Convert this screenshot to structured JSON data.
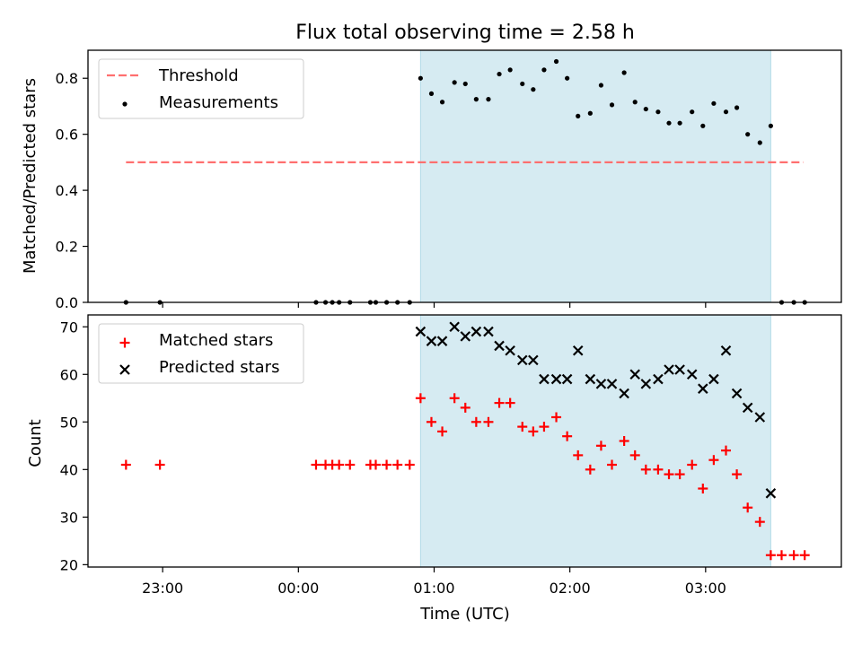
{
  "chart_data": [
    {
      "type": "scatter",
      "title": "Flux total observing time = 2.58 h",
      "ylabel": "Matched/Predicted stars",
      "xlabel": "",
      "ylim": [
        0,
        0.9
      ],
      "yticks": [
        0.0,
        0.2,
        0.4,
        0.6,
        0.8
      ],
      "ytick_labels": [
        "0.0",
        "0.2",
        "0.4",
        "0.6",
        "0.8"
      ],
      "x_unit": "hours since 00:00 UTC",
      "xlim": [
        -1.55,
        4.0
      ],
      "shaded_span": [
        0.9,
        3.48
      ],
      "threshold": {
        "name": "Threshold",
        "value": 0.5,
        "x_range": [
          -1.27,
          3.72
        ],
        "color": "#ff6f6f"
      },
      "legend": [
        "Threshold",
        "Measurements"
      ],
      "legend_position": "upper left",
      "series": [
        {
          "name": "Measurements",
          "color": "#000000",
          "x": [
            -1.27,
            -1.02,
            0.13,
            0.2,
            0.25,
            0.3,
            0.38,
            0.53,
            0.57,
            0.65,
            0.73,
            0.82,
            0.9,
            0.98,
            1.06,
            1.15,
            1.23,
            1.31,
            1.4,
            1.48,
            1.56,
            1.65,
            1.73,
            1.81,
            1.9,
            1.98,
            2.06,
            2.15,
            2.23,
            2.31,
            2.4,
            2.48,
            2.56,
            2.65,
            2.73,
            2.81,
            2.9,
            2.98,
            3.06,
            3.15,
            3.23,
            3.31,
            3.4,
            3.48,
            3.56,
            3.65,
            3.73
          ],
          "y": [
            0.0,
            0.0,
            0.0,
            0.0,
            0.0,
            0.0,
            0.0,
            0.0,
            0.0,
            0.0,
            0.0,
            0.0,
            0.8,
            0.745,
            0.715,
            0.785,
            0.78,
            0.725,
            0.725,
            0.815,
            0.83,
            0.78,
            0.76,
            0.83,
            0.86,
            0.8,
            0.665,
            0.675,
            0.775,
            0.705,
            0.82,
            0.715,
            0.69,
            0.68,
            0.64,
            0.64,
            0.68,
            0.63,
            0.71,
            0.68,
            0.695,
            0.6,
            0.57,
            0.63,
            0.0,
            0.0,
            0.0
          ]
        }
      ]
    },
    {
      "type": "scatter",
      "xlabel": "Time (UTC)",
      "ylabel": "Count",
      "ylim": [
        19.5,
        72.5
      ],
      "yticks": [
        20,
        30,
        40,
        50,
        60,
        70
      ],
      "ytick_labels": [
        "20",
        "30",
        "40",
        "50",
        "60",
        "70"
      ],
      "x_unit": "hours since 00:00 UTC",
      "xlim": [
        -1.55,
        4.0
      ],
      "xticks": [
        -1,
        0,
        1,
        2,
        3
      ],
      "xtick_labels": [
        "23:00",
        "00:00",
        "01:00",
        "02:00",
        "03:00"
      ],
      "shaded_span": [
        0.9,
        3.48
      ],
      "legend": [
        "Matched stars",
        "Predicted stars"
      ],
      "legend_position": "upper left",
      "series": [
        {
          "name": "Matched stars",
          "marker": "+",
          "color": "#ff0000",
          "x": [
            -1.27,
            -1.02,
            0.13,
            0.2,
            0.25,
            0.3,
            0.38,
            0.53,
            0.57,
            0.65,
            0.73,
            0.82,
            0.9,
            0.98,
            1.06,
            1.15,
            1.23,
            1.31,
            1.4,
            1.48,
            1.56,
            1.65,
            1.73,
            1.81,
            1.9,
            1.98,
            2.06,
            2.15,
            2.23,
            2.31,
            2.4,
            2.48,
            2.56,
            2.65,
            2.73,
            2.81,
            2.9,
            2.98,
            3.06,
            3.15,
            3.23,
            3.31,
            3.4,
            3.48,
            3.56,
            3.65,
            3.73
          ],
          "y": [
            41,
            41,
            41,
            41,
            41,
            41,
            41,
            41,
            41,
            41,
            41,
            41,
            55,
            50,
            48,
            55,
            53,
            50,
            50,
            54,
            54,
            49,
            48,
            49,
            51,
            47,
            43,
            40,
            45,
            41,
            46,
            43,
            40,
            40,
            39,
            39,
            41,
            36,
            42,
            44,
            39,
            32,
            29,
            22,
            22,
            22,
            22
          ]
        },
        {
          "name": "Predicted stars",
          "marker": "x",
          "color": "#000000",
          "x": [
            0.9,
            0.98,
            1.06,
            1.15,
            1.23,
            1.31,
            1.4,
            1.48,
            1.56,
            1.65,
            1.73,
            1.81,
            1.9,
            1.98,
            2.06,
            2.15,
            2.23,
            2.31,
            2.4,
            2.48,
            2.56,
            2.65,
            2.73,
            2.81,
            2.9,
            2.98,
            3.06,
            3.15,
            3.23,
            3.31,
            3.4,
            3.48
          ],
          "y": [
            69,
            67,
            67,
            70,
            68,
            69,
            69,
            66,
            65,
            63,
            63,
            59,
            59,
            59,
            65,
            59,
            58,
            58,
            56,
            60,
            58,
            59,
            61,
            61,
            60,
            57,
            59,
            65,
            56,
            53,
            51,
            35
          ]
        }
      ]
    }
  ]
}
